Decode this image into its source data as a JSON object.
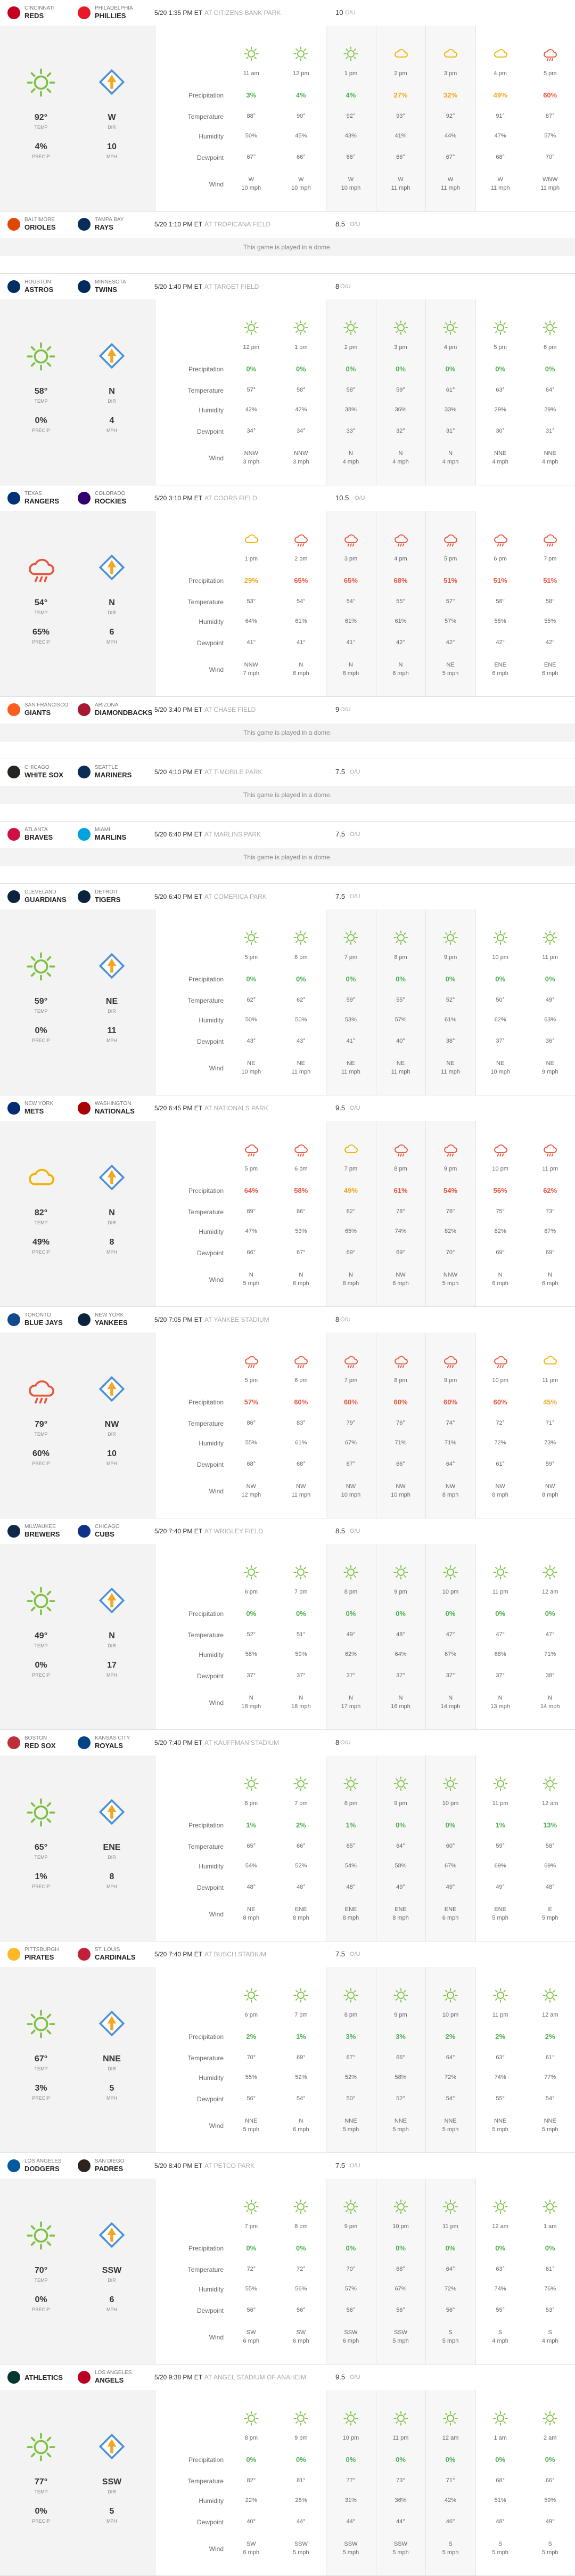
{
  "labels": {
    "ou": "O/U",
    "temp": "TEMP",
    "precip": "PRECIP",
    "dir": "DIR",
    "mph": "MPH",
    "rows": [
      "Precipitation",
      "Temperature",
      "Humidity",
      "Dewpoint",
      "Wind"
    ],
    "dome": "This game is played in a dome."
  },
  "games": [
    {
      "away": {
        "city": "CINCINNATI",
        "name": "REDS",
        "color": "#c6011f"
      },
      "home": {
        "city": "PHILADELPHIA",
        "name": "PHILLIES",
        "color": "#e81828"
      },
      "time": "5/20 1:35 PM ET",
      "venue": "AT CITIZENS BANK PARK",
      "ou": "10",
      "summary": {
        "temp": "92°",
        "precip": "4%",
        "wind_dir": "W",
        "wind_mph": "10"
      },
      "hours": [
        "11 am",
        "12 pm",
        "1 pm",
        "2 pm",
        "3 pm",
        "4 pm",
        "5 pm"
      ],
      "precip": [
        "3%",
        "4%",
        "4%",
        "27%",
        "32%",
        "49%",
        "60%"
      ],
      "temp": [
        "88°",
        "90°",
        "92°",
        "93°",
        "92°",
        "91°",
        "87°"
      ],
      "humidity": [
        "50%",
        "45%",
        "43%",
        "41%",
        "44%",
        "47%",
        "57%"
      ],
      "dewpoint": [
        "67°",
        "66°",
        "66°",
        "66°",
        "67°",
        "68°",
        "70°"
      ],
      "wind_dir": [
        "W",
        "W",
        "W",
        "W",
        "W",
        "W",
        "WNW"
      ],
      "wind_speed": [
        "10 mph",
        "10 mph",
        "10 mph",
        "11 mph",
        "11 mph",
        "11 mph",
        "11 mph"
      ]
    },
    {
      "away": {
        "city": "BALTIMORE",
        "name": "ORIOLES",
        "color": "#df4601"
      },
      "home": {
        "city": "TAMPA BAY",
        "name": "RAYS",
        "color": "#092c5c"
      },
      "time": "5/20 1:10 PM ET",
      "venue": "AT TROPICANA FIELD",
      "ou": "8.5",
      "dome": true
    },
    {
      "away": {
        "city": "HOUSTON",
        "name": "ASTROS",
        "color": "#002d62"
      },
      "home": {
        "city": "MINNESOTA",
        "name": "TWINS",
        "color": "#002b5c"
      },
      "time": "5/20 1:40 PM ET",
      "venue": "AT TARGET FIELD",
      "ou": "8",
      "summary": {
        "temp": "58°",
        "precip": "0%",
        "wind_dir": "N",
        "wind_mph": "4"
      },
      "hours": [
        "12 pm",
        "1 pm",
        "2 pm",
        "3 pm",
        "4 pm",
        "5 pm",
        "6 pm"
      ],
      "precip": [
        "0%",
        "0%",
        "0%",
        "0%",
        "0%",
        "0%",
        "0%"
      ],
      "temp": [
        "57°",
        "58°",
        "58°",
        "59°",
        "61°",
        "63°",
        "64°"
      ],
      "humidity": [
        "42%",
        "42%",
        "38%",
        "36%",
        "33%",
        "29%",
        "29%"
      ],
      "dewpoint": [
        "34°",
        "34°",
        "33°",
        "32°",
        "31°",
        "30°",
        "31°"
      ],
      "wind_dir": [
        "NNW",
        "NNW",
        "N",
        "N",
        "N",
        "NNE",
        "NNE"
      ],
      "wind_speed": [
        "3 mph",
        "3 mph",
        "4 mph",
        "4 mph",
        "4 mph",
        "4 mph",
        "4 mph"
      ]
    },
    {
      "away": {
        "city": "TEXAS",
        "name": "RANGERS",
        "color": "#003278"
      },
      "home": {
        "city": "COLORADO",
        "name": "ROCKIES",
        "color": "#33006f"
      },
      "time": "5/20 3:10 PM ET",
      "venue": "AT COORS FIELD",
      "ou": "10.5",
      "summary": {
        "temp": "54°",
        "precip": "65%",
        "wind_dir": "N",
        "wind_mph": "6"
      },
      "hours": [
        "1 pm",
        "2 pm",
        "3 pm",
        "4 pm",
        "5 pm",
        "6 pm",
        "7 pm"
      ],
      "precip": [
        "29%",
        "65%",
        "65%",
        "68%",
        "51%",
        "51%",
        "51%"
      ],
      "temp": [
        "53°",
        "54°",
        "54°",
        "55°",
        "57°",
        "58°",
        "58°"
      ],
      "humidity": [
        "64%",
        "61%",
        "61%",
        "61%",
        "57%",
        "55%",
        "55%"
      ],
      "dewpoint": [
        "41°",
        "41°",
        "41°",
        "42°",
        "42°",
        "42°",
        "42°"
      ],
      "wind_dir": [
        "NNW",
        "N",
        "N",
        "N",
        "NE",
        "ENE",
        "ENE"
      ],
      "wind_speed": [
        "7 mph",
        "6 mph",
        "6 mph",
        "6 mph",
        "5 mph",
        "6 mph",
        "6 mph"
      ]
    },
    {
      "away": {
        "city": "SAN FRANCISCO",
        "name": "GIANTS",
        "color": "#fd5a1e"
      },
      "home": {
        "city": "ARIZONA",
        "name": "DIAMONDBACKS",
        "color": "#a71930"
      },
      "time": "5/20 3:40 PM ET",
      "venue": "AT CHASE FIELD",
      "ou": "9",
      "dome": true
    },
    {
      "away": {
        "city": "CHICAGO",
        "name": "WHITE SOX",
        "color": "#27251f"
      },
      "home": {
        "city": "SEATTLE",
        "name": "MARINERS",
        "color": "#0c2c56"
      },
      "time": "5/20 4:10 PM ET",
      "venue": "AT T-MOBILE PARK",
      "ou": "7.5",
      "dome": true
    },
    {
      "away": {
        "city": "ATLANTA",
        "name": "BRAVES",
        "color": "#ce1141"
      },
      "home": {
        "city": "MIAMI",
        "name": "MARLINS",
        "color": "#00a3e0"
      },
      "time": "5/20 6:40 PM ET",
      "venue": "AT MARLINS PARK",
      "ou": "7.5",
      "dome": true
    },
    {
      "away": {
        "city": "CLEVELAND",
        "name": "GUARDIANS",
        "color": "#0c2340"
      },
      "home": {
        "city": "DETROIT",
        "name": "TIGERS",
        "color": "#0c2340"
      },
      "time": "5/20 6:40 PM ET",
      "venue": "AT COMERICA PARK",
      "ou": "7.5",
      "summary": {
        "temp": "59°",
        "precip": "0%",
        "wind_dir": "NE",
        "wind_mph": "11"
      },
      "hours": [
        "5 pm",
        "6 pm",
        "7 pm",
        "8 pm",
        "9 pm",
        "10 pm",
        "11 pm"
      ],
      "precip": [
        "0%",
        "0%",
        "0%",
        "0%",
        "0%",
        "0%",
        "0%"
      ],
      "temp": [
        "62°",
        "62°",
        "59°",
        "55°",
        "52°",
        "50°",
        "49°"
      ],
      "humidity": [
        "50%",
        "50%",
        "53%",
        "57%",
        "61%",
        "62%",
        "63%"
      ],
      "dewpoint": [
        "43°",
        "43°",
        "41°",
        "40°",
        "38°",
        "37°",
        "36°"
      ],
      "wind_dir": [
        "NE",
        "NE",
        "NE",
        "NE",
        "NE",
        "NE",
        "NE"
      ],
      "wind_speed": [
        "10 mph",
        "11 mph",
        "11 mph",
        "11 mph",
        "11 mph",
        "10 mph",
        "9 mph"
      ]
    },
    {
      "away": {
        "city": "NEW YORK",
        "name": "METS",
        "color": "#002d72"
      },
      "home": {
        "city": "WASHINGTON",
        "name": "NATIONALS",
        "color": "#ab0003"
      },
      "time": "5/20 6:45 PM ET",
      "venue": "AT NATIONALS PARK",
      "ou": "9.5",
      "summary": {
        "temp": "82°",
        "precip": "49%",
        "wind_dir": "N",
        "wind_mph": "8"
      },
      "hours": [
        "5 pm",
        "6 pm",
        "7 pm",
        "8 pm",
        "9 pm",
        "10 pm",
        "11 pm"
      ],
      "precip": [
        "64%",
        "58%",
        "49%",
        "61%",
        "54%",
        "56%",
        "62%"
      ],
      "temp": [
        "89°",
        "86°",
        "82°",
        "78°",
        "76°",
        "75°",
        "73°"
      ],
      "humidity": [
        "47%",
        "53%",
        "65%",
        "74%",
        "82%",
        "82%",
        "87%"
      ],
      "dewpoint": [
        "66°",
        "67°",
        "69°",
        "69°",
        "70°",
        "69°",
        "69°"
      ],
      "wind_dir": [
        "N",
        "N",
        "N",
        "NW",
        "NNW",
        "N",
        "N"
      ],
      "wind_speed": [
        "5 mph",
        "6 mph",
        "8 mph",
        "6 mph",
        "5 mph",
        "6 mph",
        "6 mph"
      ]
    },
    {
      "away": {
        "city": "TORONTO",
        "name": "BLUE JAYS",
        "color": "#134a8e"
      },
      "home": {
        "city": "NEW YORK",
        "name": "YANKEES",
        "color": "#0c2340"
      },
      "time": "5/20 7:05 PM ET",
      "venue": "AT YANKEE STADIUM",
      "ou": "8",
      "summary": {
        "temp": "79°",
        "precip": "60%",
        "wind_dir": "NW",
        "wind_mph": "10"
      },
      "hours": [
        "5 pm",
        "6 pm",
        "7 pm",
        "8 pm",
        "9 pm",
        "10 pm",
        "11 pm"
      ],
      "precip": [
        "57%",
        "60%",
        "60%",
        "60%",
        "60%",
        "60%",
        "45%"
      ],
      "temp": [
        "86°",
        "83°",
        "79°",
        "76°",
        "74°",
        "72°",
        "71°"
      ],
      "humidity": [
        "55%",
        "61%",
        "67%",
        "71%",
        "71%",
        "72%",
        "73%"
      ],
      "dewpoint": [
        "68°",
        "68°",
        "67°",
        "66°",
        "64°",
        "61°",
        "59°"
      ],
      "wind_dir": [
        "NW",
        "NW",
        "NW",
        "NW",
        "NW",
        "NW",
        "NW"
      ],
      "wind_speed": [
        "12 mph",
        "11 mph",
        "10 mph",
        "10 mph",
        "8 mph",
        "8 mph",
        "8 mph"
      ]
    },
    {
      "away": {
        "city": "MILWAUKEE",
        "name": "BREWERS",
        "color": "#12284b"
      },
      "home": {
        "city": "CHICAGO",
        "name": "CUBS",
        "color": "#0e3386"
      },
      "time": "5/20 7:40 PM ET",
      "venue": "AT WRIGLEY FIELD",
      "ou": "8.5",
      "summary": {
        "temp": "49°",
        "precip": "0%",
        "wind_dir": "N",
        "wind_mph": "17"
      },
      "hours": [
        "6 pm",
        "7 pm",
        "8 pm",
        "9 pm",
        "10 pm",
        "11 pm",
        "12 am"
      ],
      "precip": [
        "0%",
        "0%",
        "0%",
        "0%",
        "0%",
        "0%",
        "0%"
      ],
      "temp": [
        "52°",
        "51°",
        "49°",
        "48°",
        "47°",
        "47°",
        "47°"
      ],
      "humidity": [
        "58%",
        "59%",
        "62%",
        "64%",
        "67%",
        "68%",
        "71%"
      ],
      "dewpoint": [
        "37°",
        "37°",
        "37°",
        "37°",
        "37°",
        "37°",
        "38°"
      ],
      "wind_dir": [
        "N",
        "N",
        "N",
        "N",
        "N",
        "N",
        "N"
      ],
      "wind_speed": [
        "18 mph",
        "18 mph",
        "17 mph",
        "16 mph",
        "14 mph",
        "13 mph",
        "14 mph"
      ]
    },
    {
      "away": {
        "city": "BOSTON",
        "name": "RED SOX",
        "color": "#bd3039"
      },
      "home": {
        "city": "KANSAS CITY",
        "name": "ROYALS",
        "color": "#004687"
      },
      "time": "5/20 7:40 PM ET",
      "venue": "AT KAUFFMAN STADIUM",
      "ou": "8",
      "summary": {
        "temp": "65°",
        "precip": "1%",
        "wind_dir": "ENE",
        "wind_mph": "8"
      },
      "hours": [
        "6 pm",
        "7 pm",
        "8 pm",
        "9 pm",
        "10 pm",
        "11 pm",
        "12 am"
      ],
      "precip": [
        "1%",
        "2%",
        "1%",
        "0%",
        "0%",
        "1%",
        "13%"
      ],
      "temp": [
        "65°",
        "66°",
        "65°",
        "64°",
        "60°",
        "59°",
        "58°"
      ],
      "humidity": [
        "54%",
        "52%",
        "54%",
        "58%",
        "67%",
        "69%",
        "69%"
      ],
      "dewpoint": [
        "48°",
        "48°",
        "48°",
        "49°",
        "49°",
        "49°",
        "48°"
      ],
      "wind_dir": [
        "NE",
        "ENE",
        "ENE",
        "ENE",
        "ENE",
        "ENE",
        "E"
      ],
      "wind_speed": [
        "8 mph",
        "8 mph",
        "8 mph",
        "8 mph",
        "6 mph",
        "5 mph",
        "5 mph"
      ]
    },
    {
      "away": {
        "city": "PITTSBURGH",
        "name": "PIRATES",
        "color": "#fdb827"
      },
      "home": {
        "city": "ST. LOUIS",
        "name": "CARDINALS",
        "color": "#c41e3a"
      },
      "time": "5/20 7:40 PM ET",
      "venue": "AT BUSCH STADIUM",
      "ou": "7.5",
      "summary": {
        "temp": "67°",
        "precip": "3%",
        "wind_dir": "NNE",
        "wind_mph": "5"
      },
      "hours": [
        "6 pm",
        "7 pm",
        "8 pm",
        "9 pm",
        "10 pm",
        "11 pm",
        "12 am"
      ],
      "precip": [
        "2%",
        "1%",
        "3%",
        "3%",
        "2%",
        "2%",
        "2%"
      ],
      "temp": [
        "70°",
        "69°",
        "67°",
        "66°",
        "64°",
        "63°",
        "61°"
      ],
      "humidity": [
        "55%",
        "52%",
        "52%",
        "58%",
        "72%",
        "74%",
        "77%"
      ],
      "dewpoint": [
        "56°",
        "54°",
        "50°",
        "52°",
        "54°",
        "55°",
        "54°"
      ],
      "wind_dir": [
        "NNE",
        "N",
        "NNE",
        "NNE",
        "NNE",
        "NNE",
        "NNE"
      ],
      "wind_speed": [
        "5 mph",
        "6 mph",
        "5 mph",
        "5 mph",
        "5 mph",
        "5 mph",
        "5 mph"
      ]
    },
    {
      "away": {
        "city": "LOS ANGELES",
        "name": "DODGERS",
        "color": "#005a9c"
      },
      "home": {
        "city": "SAN DIEGO",
        "name": "PADRES",
        "color": "#2f241d"
      },
      "time": "5/20 8:40 PM ET",
      "venue": "AT PETCO PARK",
      "ou": "7.5",
      "summary": {
        "temp": "70°",
        "precip": "0%",
        "wind_dir": "SSW",
        "wind_mph": "6"
      },
      "hours": [
        "7 pm",
        "8 pm",
        "9 pm",
        "10 pm",
        "11 pm",
        "12 am",
        "1 am"
      ],
      "precip": [
        "0%",
        "0%",
        "0%",
        "0%",
        "0%",
        "0%",
        "0%"
      ],
      "temp": [
        "72°",
        "72°",
        "70°",
        "68°",
        "64°",
        "63°",
        "61°"
      ],
      "humidity": [
        "55%",
        "56%",
        "57%",
        "67%",
        "72%",
        "74%",
        "76%"
      ],
      "dewpoint": [
        "56°",
        "56°",
        "56°",
        "56°",
        "56°",
        "55°",
        "53°"
      ],
      "wind_dir": [
        "SW",
        "SW",
        "SSW",
        "SSW",
        "S",
        "S",
        "S"
      ],
      "wind_speed": [
        "6 mph",
        "6 mph",
        "6 mph",
        "5 mph",
        "5 mph",
        "4 mph",
        "4 mph"
      ]
    },
    {
      "away": {
        "name": "ATHLETICS",
        "color": "#003831"
      },
      "home": {
        "city": "LOS ANGELES",
        "name": "ANGELS",
        "color": "#ba0021"
      },
      "time": "5/20 9:38 PM ET",
      "venue": "AT ANGEL STADIUM OF ANAHEIM",
      "ou": "9.5",
      "summary": {
        "temp": "77°",
        "precip": "0%",
        "wind_dir": "SSW",
        "wind_mph": "5"
      },
      "hours": [
        "8 pm",
        "9 pm",
        "10 pm",
        "11 pm",
        "12 am",
        "1 am",
        "2 am"
      ],
      "precip": [
        "0%",
        "0%",
        "0%",
        "0%",
        "0%",
        "0%",
        "0%"
      ],
      "temp": [
        "82°",
        "81°",
        "77°",
        "73°",
        "71°",
        "68°",
        "66°"
      ],
      "humidity": [
        "22%",
        "28%",
        "31%",
        "36%",
        "42%",
        "51%",
        "59%"
      ],
      "dewpoint": [
        "40°",
        "44°",
        "44°",
        "44°",
        "46°",
        "48°",
        "49°"
      ],
      "wind_dir": [
        "SW",
        "SSW",
        "SSW",
        "SSW",
        "S",
        "S",
        "S"
      ],
      "wind_speed": [
        "6 mph",
        "5 mph",
        "5 mph",
        "5 mph",
        "5 mph",
        "5 mph",
        "5 mph"
      ]
    }
  ]
}
